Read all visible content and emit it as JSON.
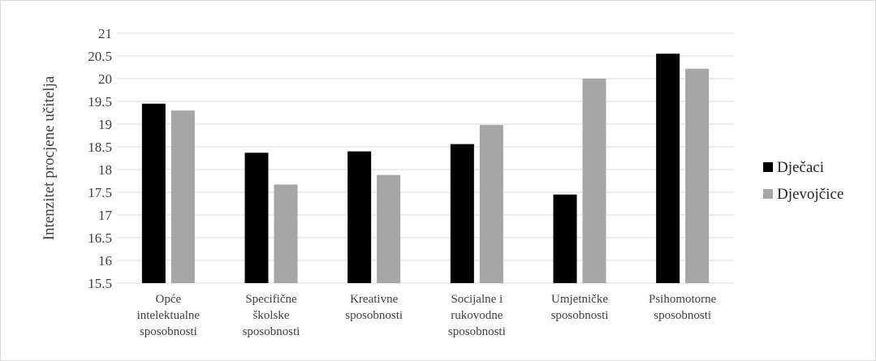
{
  "chart_data": {
    "type": "bar",
    "title": "",
    "xlabel": "",
    "ylabel": "Intenzitet procjene učitelja",
    "ylim": [
      15.5,
      21
    ],
    "yticks": [
      "15.5",
      "16",
      "16.5",
      "17",
      "17.5",
      "18",
      "18.5",
      "19",
      "19.5",
      "20",
      "20.5",
      "21"
    ],
    "grid": true,
    "legend_position": "right",
    "categories": [
      [
        "Opće",
        "intelektualne",
        "sposobnosti"
      ],
      [
        "Specifične",
        "školske",
        "sposobnosti"
      ],
      [
        "Kreativne",
        "sposobnosti"
      ],
      [
        "Socijalne i",
        "rukovodne",
        "sposobnosti"
      ],
      [
        "Umjetničke",
        "sposobnosti"
      ],
      [
        "Psihomotorne",
        "sposobnosti"
      ]
    ],
    "series": [
      {
        "name": "Dječaci",
        "color": "#000000",
        "values": [
          19.45,
          18.37,
          18.4,
          18.56,
          17.45,
          20.55
        ]
      },
      {
        "name": "Djevojčice",
        "color": "#a6a6a6",
        "values": [
          19.3,
          17.67,
          17.88,
          18.98,
          20.0,
          20.22
        ]
      }
    ]
  }
}
